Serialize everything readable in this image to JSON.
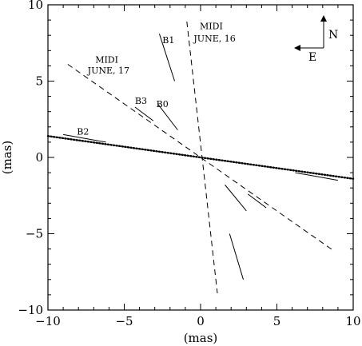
{
  "chart_data": {
    "type": "line",
    "title": "",
    "xlabel": "(mas)",
    "ylabel": "(mas)",
    "xlim": [
      -10,
      10
    ],
    "ylim": [
      -10,
      10
    ],
    "xticks": [
      -10,
      -5,
      0,
      5,
      10
    ],
    "yticks": [
      -10,
      -5,
      0,
      5,
      10
    ],
    "xtick_labels": [
      "−10",
      "−5",
      "0",
      "5",
      "10"
    ],
    "ytick_labels": [
      "−10",
      "−5",
      "0",
      "5",
      "10"
    ],
    "grid": false,
    "series": [
      {
        "id": "midi-june-16",
        "style": "dashed",
        "x": [
          -0.9,
          1.1
        ],
        "y": [
          8.9,
          -8.9
        ]
      },
      {
        "id": "midi-june-17",
        "style": "dashed",
        "x": [
          -8.7,
          8.7
        ],
        "y": [
          6.1,
          -6.1
        ]
      },
      {
        "id": "fit-line",
        "style": "dotted",
        "x": [
          -10,
          10
        ],
        "y": [
          1.4,
          -1.4
        ]
      },
      {
        "id": "b1-upper",
        "style": "solid",
        "x": [
          -2.7,
          -1.7
        ],
        "y": [
          8.1,
          5.0
        ]
      },
      {
        "id": "b1-lower",
        "style": "solid",
        "x": [
          1.9,
          2.8
        ],
        "y": [
          -5.0,
          -8.0
        ]
      },
      {
        "id": "b0-upper",
        "style": "solid",
        "x": [
          -2.8,
          -1.5
        ],
        "y": [
          3.5,
          1.8
        ]
      },
      {
        "id": "b0-lower",
        "style": "solid",
        "x": [
          1.6,
          3.0
        ],
        "y": [
          -1.8,
          -3.5
        ]
      },
      {
        "id": "b3-upper",
        "style": "solid",
        "x": [
          -4.3,
          -3.1
        ],
        "y": [
          3.3,
          2.4
        ]
      },
      {
        "id": "b3-lower",
        "style": "solid",
        "x": [
          3.1,
          4.3
        ],
        "y": [
          -2.4,
          -3.3
        ]
      },
      {
        "id": "b2-left",
        "style": "solid",
        "x": [
          -9.0,
          -6.2
        ],
        "y": [
          1.5,
          1.0
        ]
      },
      {
        "id": "b2-right",
        "style": "solid",
        "x": [
          6.2,
          9.0
        ],
        "y": [
          -1.0,
          -1.5
        ]
      }
    ],
    "annotations": [
      {
        "id": "b1-label",
        "text": "B1",
        "x": -2.5,
        "y": 7.5
      },
      {
        "id": "midi-16-label-1",
        "text": "MIDI",
        "x": -0.05,
        "y": 8.4
      },
      {
        "id": "midi-16-label-2",
        "text": "JUNE, 16",
        "x": -0.45,
        "y": 7.6
      },
      {
        "id": "midi-17-label-1",
        "text": "MIDI",
        "x": -6.9,
        "y": 6.2
      },
      {
        "id": "midi-17-label-2",
        "text": "JUNE, 17",
        "x": -7.4,
        "y": 5.5
      },
      {
        "id": "b3-label",
        "text": "B3",
        "x": -4.3,
        "y": 3.5
      },
      {
        "id": "b0-label",
        "text": "B0",
        "x": -2.9,
        "y": 3.3
      },
      {
        "id": "b2-label",
        "text": "B2",
        "x": -8.1,
        "y": 1.5
      }
    ],
    "compass": {
      "north_label": "N",
      "east_label": "E"
    }
  }
}
